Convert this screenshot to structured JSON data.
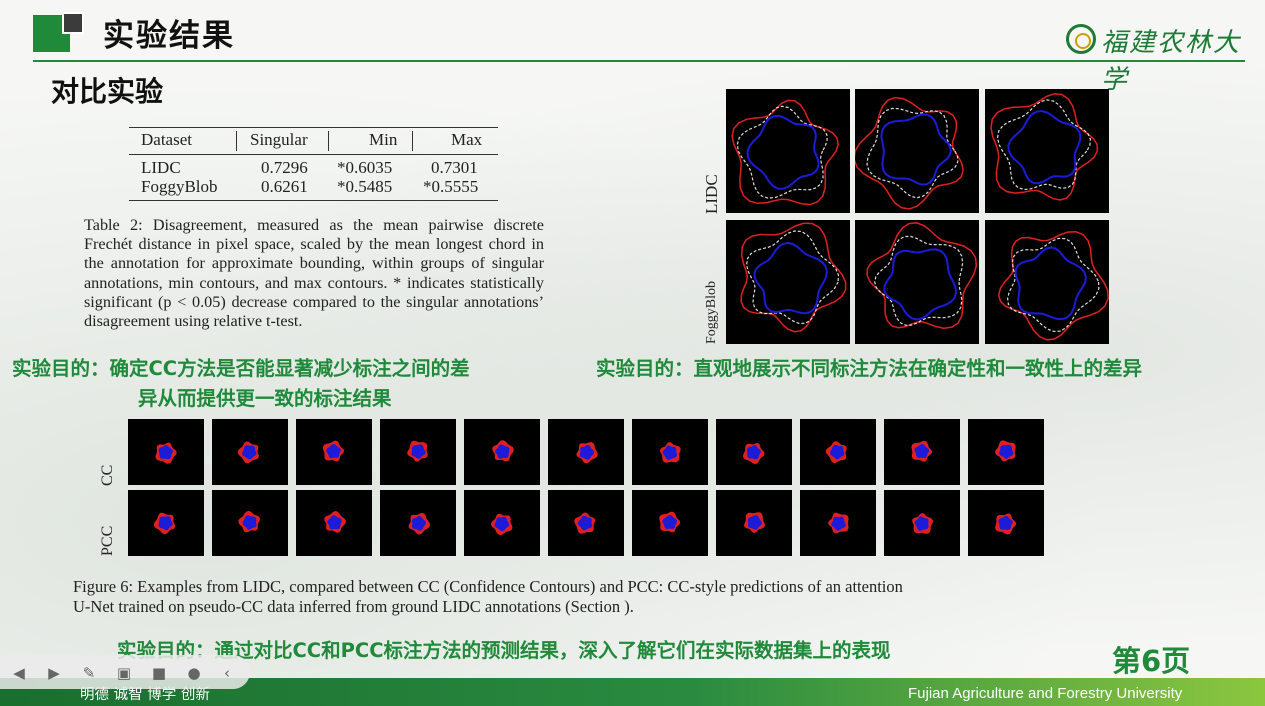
{
  "header": {
    "title": "实验结果",
    "subtitle": "对比实验",
    "university_logo_text": "福建农林大学"
  },
  "table": {
    "columns": [
      "Dataset",
      "Singular",
      "Min",
      "Max"
    ],
    "rows": [
      [
        "LIDC",
        "0.7296",
        "*0.6035",
        "0.7301"
      ],
      [
        "FoggyBlob",
        "0.6261",
        "*0.5485",
        "*0.5555"
      ]
    ]
  },
  "table_caption": "Table 2: Disagreement, measured as the mean pairwise discrete Frechét distance in pixel space, scaled by the mean longest chord in the annotation for approximate bounding, within groups of singular annotations, min contours, and max contours. * indicates statistically significant (p < 0.05) decrease compared to the singular annotations’ disagreement using relative t-test.",
  "top_right_figure": {
    "row_labels": [
      "LIDC",
      "FoggyBlob"
    ]
  },
  "goals": {
    "left_line1": "实验目的：确定CC方法是否能显著减少标注之间的差",
    "left_line2": "异从而提供更一致的标注结果",
    "right": "实验目的：直观地展示不同标注方法在确定性和一致性上的差异",
    "bottom": "实验目的：通过对比CC和PCC标注方法的预测结果，深入了解它们在实际数据集上的表现"
  },
  "bottom_figure": {
    "row_labels": [
      "CC",
      "PCC"
    ],
    "caption_line1": "Figure 6: Examples from LIDC, compared between CC (Confidence Contours) and PCC: CC-style predictions of an attention",
    "caption_line2": "U-Net trained on pseudo-CC data inferred from ground LIDC annotations (Section )."
  },
  "page_number": "第6页",
  "footer": {
    "motto": "明德 诚智 博学 创新",
    "english_name": "Fujian Agriculture and Forestry University"
  },
  "toolbar_icons": [
    "prev-icon",
    "next-icon",
    "pen-icon",
    "screen-icon",
    "video-icon",
    "more-icon",
    "collapse-icon"
  ],
  "colors": {
    "brand_green": "#1e8a3a",
    "contour_red": "#e0201e",
    "contour_blue": "#1b1bd8"
  }
}
